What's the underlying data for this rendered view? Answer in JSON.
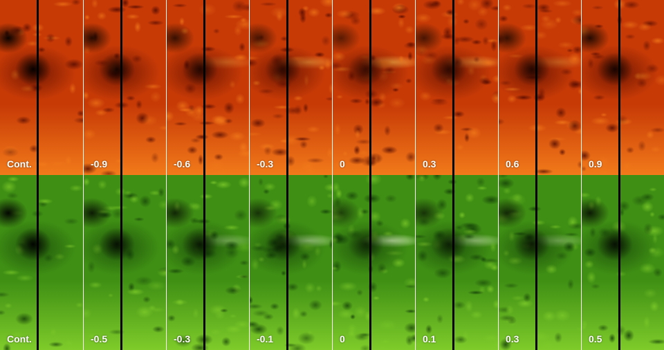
{
  "rows": [
    {
      "name": "top",
      "colors": {
        "base": "#c73a06",
        "bright": "#f27a1a",
        "dark": "#4a0600",
        "highlight": "#ffb84a"
      },
      "labels": [
        "Cont.",
        "-0.9",
        "-0.6",
        "-0.3",
        "0",
        "0.3",
        "0.6",
        "0.9"
      ]
    },
    {
      "name": "bottom",
      "colors": {
        "base": "#3f8f14",
        "bright": "#7ecb2a",
        "dark": "#0f3806",
        "highlight": "#eafcd0"
      },
      "labels": [
        "Cont.",
        "-0.5",
        "-0.3",
        "-0.1",
        "0",
        "0.1",
        "0.3",
        "0.5"
      ]
    }
  ]
}
